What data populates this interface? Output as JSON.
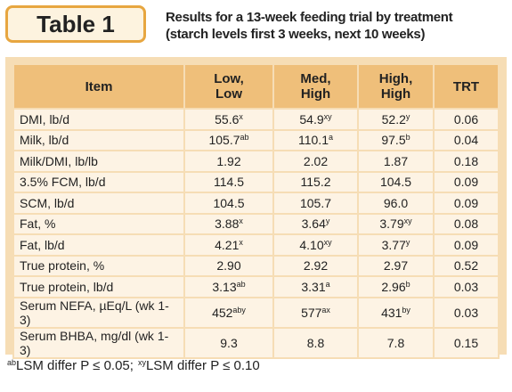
{
  "header": {
    "tab": "Table 1",
    "title": [
      "Results for a 13-week feeding trial by treatment",
      "(starch levels first 3 weeks, next 10 weeks)"
    ]
  },
  "table": {
    "columns": [
      [
        "Item"
      ],
      [
        "Low,",
        "Low"
      ],
      [
        "Med,",
        "High"
      ],
      [
        "High,",
        "High"
      ],
      [
        "TRT"
      ]
    ],
    "rows": [
      {
        "item": "DMI, lb/d",
        "cells": [
          {
            "value": "55.6",
            "sup": "x"
          },
          {
            "value": "54.9",
            "sup": "xy"
          },
          {
            "value": "52.2",
            "sup": "y"
          }
        ],
        "trt": "0.06"
      },
      {
        "item": "Milk, lb/d",
        "cells": [
          {
            "value": "105.7",
            "sup": "ab"
          },
          {
            "value": "110.1",
            "sup": "a"
          },
          {
            "value": "97.5",
            "sup": "b"
          }
        ],
        "trt": "0.04"
      },
      {
        "item": "Milk/DMI, lb/lb",
        "cells": [
          {
            "value": "1.92"
          },
          {
            "value": "2.02"
          },
          {
            "value": "1.87"
          }
        ],
        "trt": "0.18"
      },
      {
        "item": "3.5% FCM, lb/d",
        "cells": [
          {
            "value": "114.5"
          },
          {
            "value": "115.2"
          },
          {
            "value": "104.5"
          }
        ],
        "trt": "0.09"
      },
      {
        "item": "SCM, lb/d",
        "cells": [
          {
            "value": "104.5"
          },
          {
            "value": "105.7"
          },
          {
            "value": "96.0"
          }
        ],
        "trt": "0.09"
      },
      {
        "item": "Fat, %",
        "cells": [
          {
            "value": "3.88",
            "sup": "x"
          },
          {
            "value": "3.64",
            "sup": "y"
          },
          {
            "value": "3.79",
            "sup": "xy"
          }
        ],
        "trt": "0.08"
      },
      {
        "item": "Fat, lb/d",
        "cells": [
          {
            "value": "4.21",
            "sup": "x"
          },
          {
            "value": "4.10",
            "sup": "xy"
          },
          {
            "value": "3.77",
            "sup": "y"
          }
        ],
        "trt": "0.09"
      },
      {
        "item": "True protein, %",
        "cells": [
          {
            "value": "2.90"
          },
          {
            "value": "2.92"
          },
          {
            "value": "2.97"
          }
        ],
        "trt": "0.52"
      },
      {
        "item": "True protein, lb/d",
        "cells": [
          {
            "value": "3.13",
            "sup": "ab"
          },
          {
            "value": "3.31",
            "sup": "a"
          },
          {
            "value": "2.96",
            "sup": "b"
          }
        ],
        "trt": "0.03"
      },
      {
        "item": "Serum NEFA, µEq/L (wk 1-3)",
        "cells": [
          {
            "value": "452",
            "sup": "aby"
          },
          {
            "value": "577",
            "sup": "ax"
          },
          {
            "value": "431",
            "sup": "by"
          }
        ],
        "trt": "0.03"
      },
      {
        "item": "Serum BHBA, mg/dl (wk 1-3)",
        "cells": [
          {
            "value": "9.3"
          },
          {
            "value": "8.8"
          },
          {
            "value": "7.8"
          }
        ],
        "trt": "0.15"
      }
    ]
  },
  "footnote": [
    {
      "sup": "ab",
      "text": "LSM differ P ≤ 0.05;"
    },
    {
      "sup": "xy",
      "text": "LSM differ P ≤ 0.10"
    }
  ]
}
